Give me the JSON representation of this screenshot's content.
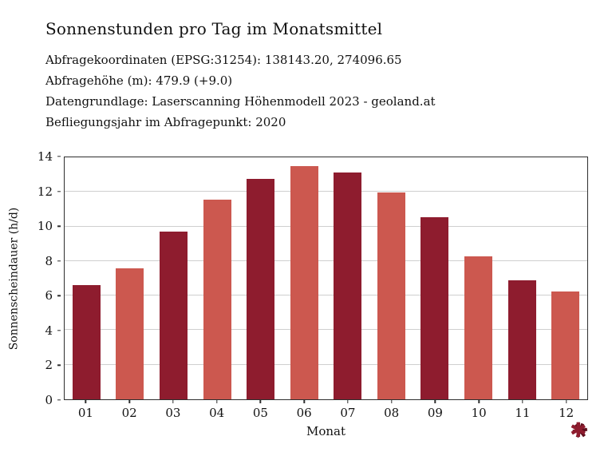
{
  "title": "Sonnenstunden pro Tag im Monatsmittel",
  "meta_lines": [
    "Abfragekoordinaten (EPSG:31254): 138143.20, 274096.65",
    "Abfragehöhe (m): 479.9 (+9.0)",
    "Datengrundlage: Laserscanning Höhenmodell 2023 - geoland.at",
    "Befliegungsjahr im Abfragepunkt: 2020"
  ],
  "chart_data": {
    "type": "bar",
    "title": "Sonnenstunden pro Tag im Monatsmittel",
    "categories": [
      "01",
      "02",
      "03",
      "04",
      "05",
      "06",
      "07",
      "08",
      "09",
      "10",
      "11",
      "12"
    ],
    "values": [
      6.6,
      7.6,
      9.7,
      11.55,
      12.75,
      13.5,
      13.1,
      11.95,
      10.55,
      8.25,
      6.9,
      6.25
    ],
    "bar_colors": [
      "#8e1c2e",
      "#cc584f",
      "#8e1c2e",
      "#cc584f",
      "#8e1c2e",
      "#cc584f",
      "#8e1c2e",
      "#cc584f",
      "#8e1c2e",
      "#cc584f",
      "#8e1c2e",
      "#cc584f"
    ],
    "xlabel": "Monat",
    "ylabel": "Sonnenscheindauer (h/d)",
    "ylim": [
      0,
      14
    ],
    "yticks": [
      0,
      2,
      4,
      6,
      8,
      10,
      12,
      14
    ],
    "grid": true,
    "legend": "none"
  },
  "colors": {
    "dark_bar": "#8e1c2e",
    "light_bar": "#cc584f",
    "grid": "#cfcfcf",
    "frame": "#2e2e2e"
  },
  "logo": {
    "glyph": "✱"
  }
}
